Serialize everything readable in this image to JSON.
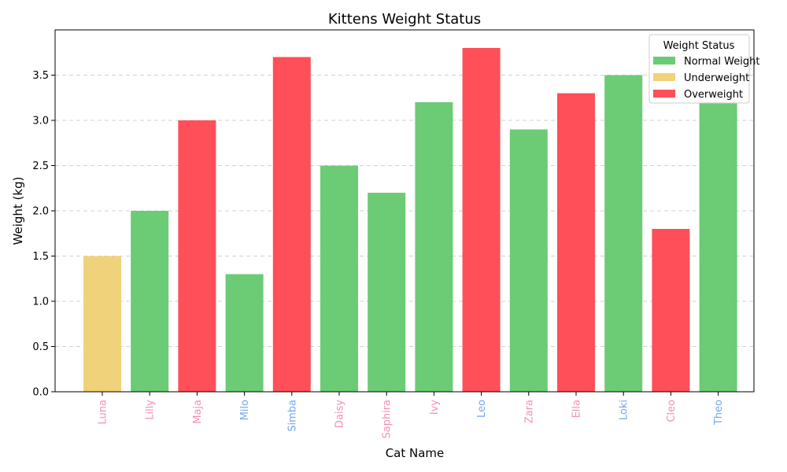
{
  "chart_data": {
    "type": "bar",
    "title": "Kittens Weight Status",
    "xlabel": "Cat Name",
    "ylabel": "Weight (kg)",
    "ylim": [
      0,
      4.0
    ],
    "yticks": [
      0.0,
      0.5,
      1.0,
      1.5,
      2.0,
      2.5,
      3.0,
      3.5
    ],
    "ytick_labels": [
      "0.0",
      "0.5",
      "1.0",
      "1.5",
      "2.0",
      "2.5",
      "3.0",
      "3.5"
    ],
    "grid": "horizontal-dashed",
    "categories": [
      "Luna",
      "Lilly",
      "Maja",
      "Milo",
      "Simba",
      "Daisy",
      "Saphira",
      "Ivy",
      "Leo",
      "Zara",
      "Ella",
      "Loki",
      "Cleo",
      "Theo"
    ],
    "values": [
      1.5,
      2.0,
      3.0,
      1.3,
      3.7,
      2.5,
      2.2,
      3.2,
      3.8,
      2.9,
      3.3,
      3.5,
      1.8,
      3.2
    ],
    "status": [
      "Underweight",
      "Normal Weight",
      "Overweight",
      "Normal Weight",
      "Overweight",
      "Normal Weight",
      "Normal Weight",
      "Normal Weight",
      "Overweight",
      "Normal Weight",
      "Overweight",
      "Normal Weight",
      "Overweight",
      "Normal Weight"
    ],
    "label_colors": [
      "#f48fb1",
      "#f48fb1",
      "#f48fb1",
      "#6fa8f5",
      "#6fa8f5",
      "#f48fb1",
      "#f48fb1",
      "#f48fb1",
      "#6fa8f5",
      "#f48fb1",
      "#f48fb1",
      "#6fa8f5",
      "#f48fb1",
      "#6fa8f5"
    ],
    "status_colors": {
      "Normal Weight": "#6ccb75",
      "Underweight": "#f0d27a",
      "Overweight": "#ff4f58"
    },
    "legend": {
      "title": "Weight Status",
      "placement": "top-right",
      "entries": [
        "Normal Weight",
        "Underweight",
        "Overweight"
      ]
    }
  }
}
